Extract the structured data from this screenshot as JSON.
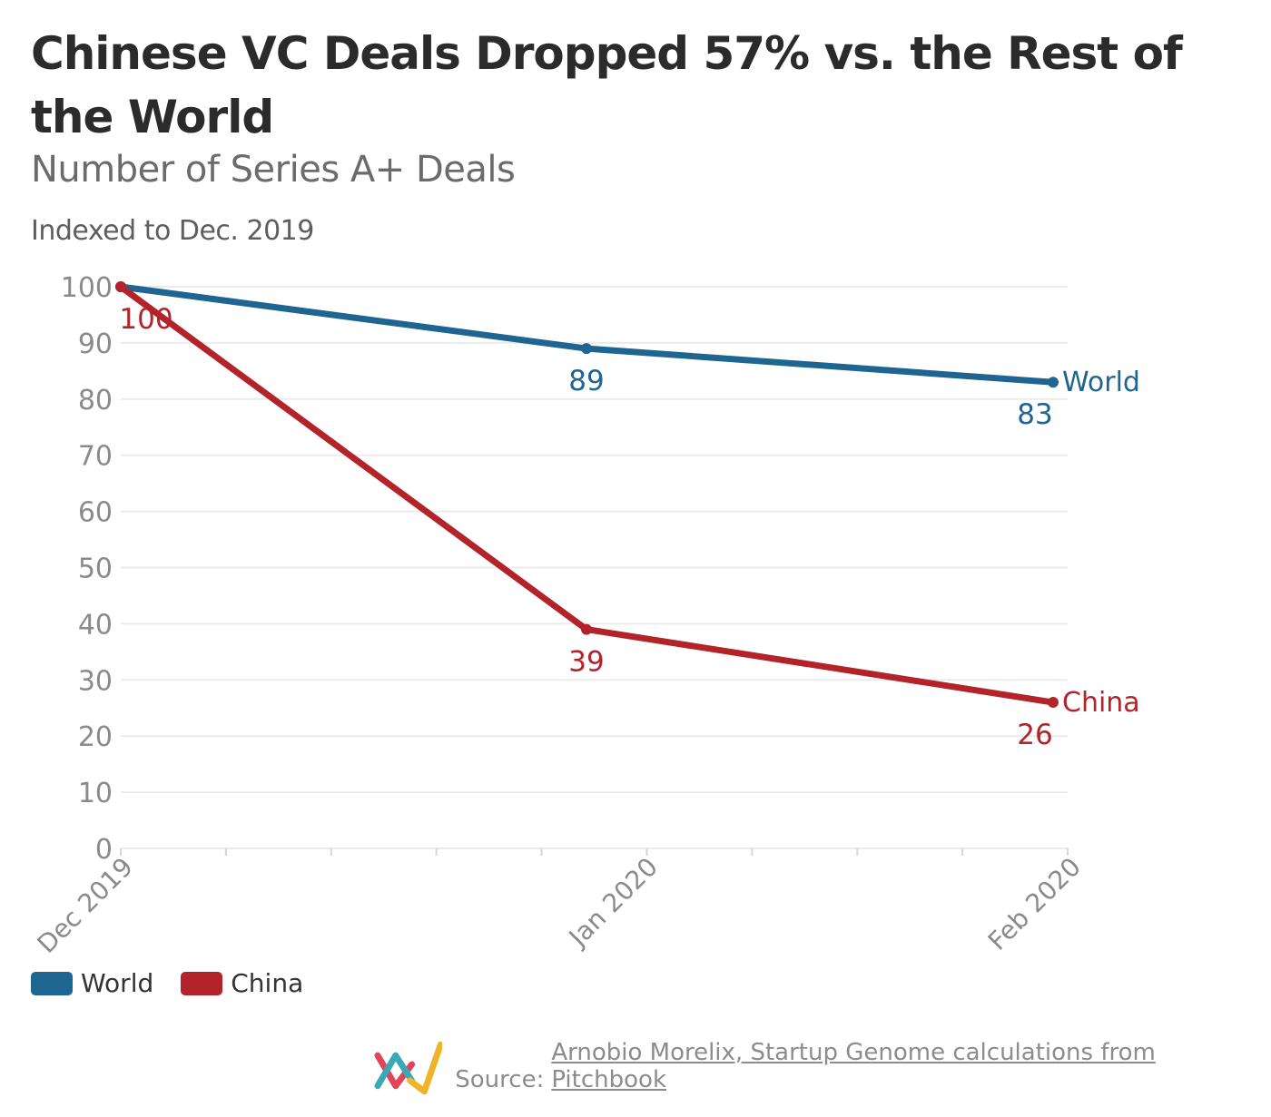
{
  "chart_data": {
    "type": "line",
    "title": "Chinese VC Deals Dropped 57% vs. the Rest of the World",
    "subtitle": "Number of Series A+ Deals",
    "ylabel": "Indexed to Dec. 2019",
    "xlabel": "",
    "categories": [
      "Dec 2019",
      "Jan 2020",
      "Feb 2020"
    ],
    "ylim": [
      0,
      100
    ],
    "yticks": [
      0,
      10,
      20,
      30,
      40,
      50,
      60,
      70,
      80,
      90,
      100
    ],
    "grid": true,
    "legend_position": "bottom-left",
    "series": [
      {
        "name": "World",
        "values": [
          100,
          89,
          83
        ],
        "labels": [
          "",
          "89",
          "83"
        ],
        "color": "#1f6591"
      },
      {
        "name": "China",
        "values": [
          100,
          39,
          26
        ],
        "labels": [
          "100",
          "39",
          "26"
        ],
        "color": "#b3232a"
      }
    ]
  },
  "source": {
    "label": "Source:",
    "text": "Arnobio Morelix, Startup Genome calculations from Pitchbook"
  },
  "colors": {
    "grid": "#ebebeb",
    "tick_text": "#8a8a8a",
    "logo": [
      "#e0455c",
      "#3aa9b5",
      "#f0b429"
    ]
  }
}
